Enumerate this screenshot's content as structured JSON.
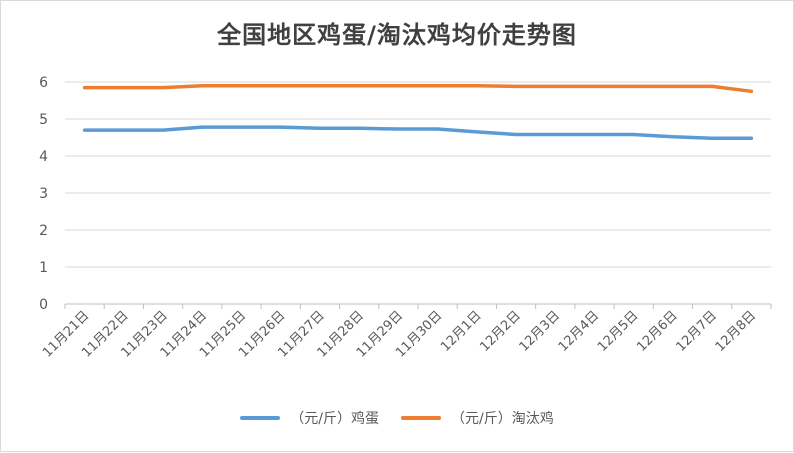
{
  "chart_data": {
    "type": "line",
    "title": "全国地区鸡蛋/淘汰鸡均价走势图",
    "x": [
      "11月21日",
      "11月22日",
      "11月23日",
      "11月24日",
      "11月25日",
      "11月26日",
      "11月27日",
      "11月28日",
      "11月29日",
      "11月30日",
      "12月1日",
      "12月2日",
      "12月3日",
      "12月4日",
      "12月5日",
      "12月6日",
      "12月7日",
      "12月8日"
    ],
    "ylim": [
      0,
      6
    ],
    "yticks": [
      0,
      1,
      2,
      3,
      4,
      5,
      6
    ],
    "grid": true,
    "legend_position": "bottom",
    "series": [
      {
        "name": "（元/斤）鸡蛋",
        "color": "#5b9bd5",
        "values": [
          4.7,
          4.7,
          4.7,
          4.78,
          4.78,
          4.78,
          4.75,
          4.75,
          4.73,
          4.73,
          4.65,
          4.58,
          4.58,
          4.58,
          4.58,
          4.52,
          4.48,
          4.48
        ]
      },
      {
        "name": "（元/斤）淘汰鸡",
        "color": "#ed7d31",
        "values": [
          5.85,
          5.85,
          5.85,
          5.9,
          5.9,
          5.9,
          5.9,
          5.9,
          5.9,
          5.9,
          5.9,
          5.88,
          5.88,
          5.88,
          5.88,
          5.88,
          5.88,
          5.75
        ]
      }
    ]
  }
}
